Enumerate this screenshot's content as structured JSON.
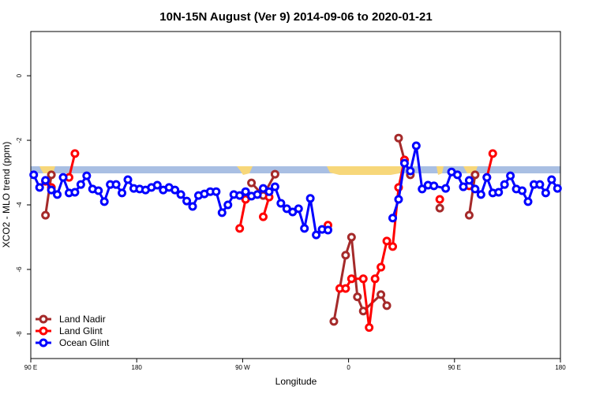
{
  "chart_data": {
    "type": "line",
    "title": "10N-15N August (Ver 9)   2014-09-06 to 2020-01-21",
    "x_label": "Longitude",
    "y_label": "XCO2 - MLO trend (ppm)",
    "xlim": [
      90,
      540
    ],
    "ylim": [
      -8.76,
      1.37
    ],
    "xticks": [
      {
        "value": 90,
        "label": "90 E"
      },
      180,
      {
        "value": 270,
        "label": "90 W"
      },
      {
        "value": 360,
        "label": "0"
      },
      {
        "value": 450,
        "label": "90 E"
      },
      {
        "value": 540,
        "label": "180"
      }
    ],
    "yticks": [
      0,
      -2,
      -4,
      -6,
      -8
    ],
    "legend": "bottom-left",
    "series": [
      {
        "name": "Land Nadir",
        "color": "#a52a2a",
        "x": [
          102.5,
          107.5,
          null,
          277.5,
          287.5,
          297.5,
          null,
          347.5,
          357.5,
          362.5,
          367.5,
          372.5,
          387.5,
          392.5,
          null,
          402.5,
          407.5,
          412.5,
          null,
          437.5,
          null,
          462.5,
          467.5
        ],
        "values": [
          -4.32,
          -3.07,
          null,
          -3.32,
          -3.71,
          -3.05,
          null,
          -7.61,
          -5.56,
          -5.0,
          -6.85,
          -7.29,
          -6.78,
          -7.12,
          null,
          -1.93,
          -2.61,
          -3.07,
          null,
          -4.1,
          null,
          -4.32,
          -3.07
        ]
      },
      {
        "name": "Land Glint",
        "color": "#ff0000",
        "x": [
          102.5,
          107.5,
          null,
          122.5,
          127.5,
          null,
          267.5,
          272.5,
          null,
          287.5,
          292.5,
          null,
          342.5,
          null,
          352.5,
          357.5,
          362.5,
          372.5,
          377.5,
          382.5,
          387.5,
          392.5,
          397.5,
          402.5,
          407.5,
          null,
          437.5,
          null,
          462.5,
          null,
          477.5,
          482.5
        ],
        "values": [
          -3.27,
          -3.46,
          null,
          -3.15,
          -2.41,
          null,
          -4.73,
          -3.83,
          null,
          -4.37,
          -3.76,
          null,
          -4.63,
          null,
          -6.59,
          -6.59,
          -6.29,
          -6.29,
          -7.8,
          -6.29,
          -5.93,
          -5.12,
          -5.29,
          -3.46,
          -2.61,
          null,
          -3.83,
          null,
          -3.41,
          null,
          -3.15,
          -2.41
        ]
      },
      {
        "name": "Ocean Glint",
        "color": "#0000ff",
        "x": [
          92.5,
          97.5,
          102.5,
          107.5,
          112.5,
          117.5,
          122.5,
          127.5,
          132.5,
          137.5,
          142.5,
          147.5,
          152.5,
          157.5,
          162.5,
          167.5,
          172.5,
          177.5,
          182.5,
          187.5,
          192.5,
          197.5,
          202.5,
          207.5,
          212.5,
          217.5,
          222.5,
          227.5,
          232.5,
          237.5,
          242.5,
          247.5,
          252.5,
          257.5,
          262.5,
          267.5,
          272.5,
          277.5,
          282.5,
          287.5,
          292.5,
          297.5,
          302.5,
          307.5,
          312.5,
          317.5,
          322.5,
          327.5,
          332.5,
          337.5,
          342.5,
          null,
          397.5,
          402.5,
          407.5,
          412.5,
          417.5,
          422.5,
          427.5,
          432.5,
          442.5,
          447.5,
          452.5,
          457.5,
          462.5,
          467.5,
          472.5,
          477.5,
          482.5,
          487.5,
          492.5,
          497.5,
          502.5,
          507.5,
          512.5,
          517.5,
          522.5,
          527.5,
          532.5,
          537.5
        ],
        "values": [
          -3.07,
          -3.46,
          -3.24,
          -3.54,
          -3.68,
          -3.15,
          -3.63,
          -3.61,
          -3.37,
          -3.1,
          -3.51,
          -3.56,
          -3.9,
          -3.37,
          -3.37,
          -3.63,
          -3.22,
          -3.49,
          -3.51,
          -3.54,
          -3.46,
          -3.39,
          -3.54,
          -3.46,
          -3.54,
          -3.68,
          -3.88,
          -4.05,
          -3.71,
          -3.66,
          -3.59,
          -3.59,
          -4.24,
          -4.0,
          -3.68,
          -3.71,
          -3.59,
          -3.73,
          -3.68,
          -3.49,
          -3.59,
          -3.44,
          -3.95,
          -4.12,
          -4.22,
          -4.12,
          -4.73,
          -3.8,
          -4.93,
          -4.76,
          -4.78,
          null,
          -4.41,
          -3.83,
          -2.71,
          -2.95,
          -2.17,
          -3.51,
          -3.39,
          -3.41,
          -3.49,
          -2.98,
          -3.07,
          -3.44,
          -3.24,
          -3.51,
          -3.68,
          -3.15,
          -3.63,
          -3.61,
          -3.37,
          -3.1,
          -3.51,
          -3.56,
          -3.9,
          -3.37,
          -3.37,
          -3.63,
          -3.22,
          -3.49
        ]
      }
    ]
  }
}
